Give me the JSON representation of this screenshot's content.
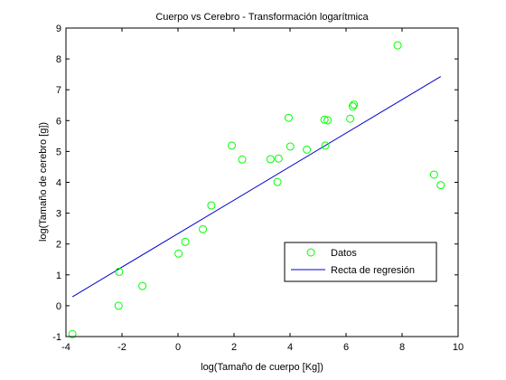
{
  "chart_data": {
    "type": "scatter",
    "title": "Cuerpo vs Cerebro - Transformación logarítmica",
    "xlabel": "log(Tamaño de cuerpo [Kg])",
    "ylabel": "log(Tamaño de cerebro [g])",
    "xlim": [
      -4,
      10
    ],
    "ylim": [
      -1,
      9
    ],
    "xticks": [
      -4,
      -2,
      0,
      2,
      4,
      6,
      8,
      10
    ],
    "xtick_labels": [
      "-4",
      "-2",
      "0",
      "2",
      "4",
      "6",
      "8",
      "10"
    ],
    "yticks": [
      -1,
      0,
      1,
      2,
      3,
      4,
      5,
      6,
      7,
      8,
      9
    ],
    "ytick_labels": [
      "-1",
      "0",
      "1",
      "2",
      "3",
      "4",
      "5",
      "6",
      "7",
      "8",
      "9"
    ],
    "grid": false,
    "legend_position": "bottom-right",
    "series": [
      {
        "name": "Datos",
        "kind": "scatter",
        "marker": "open-circle",
        "color": "#00ff00",
        "points": [
          [
            -3.77,
            -0.92
          ],
          [
            -2.12,
            0.0
          ],
          [
            -2.1,
            1.1
          ],
          [
            -1.27,
            0.64
          ],
          [
            0.02,
            1.69
          ],
          [
            0.26,
            2.07
          ],
          [
            0.89,
            2.48
          ],
          [
            1.19,
            3.25
          ],
          [
            1.92,
            5.19
          ],
          [
            2.29,
            4.74
          ],
          [
            3.3,
            4.75
          ],
          [
            3.55,
            4.01
          ],
          [
            3.59,
            4.77
          ],
          [
            3.95,
            6.09
          ],
          [
            4.01,
            5.16
          ],
          [
            4.6,
            5.06
          ],
          [
            5.23,
            6.03
          ],
          [
            5.26,
            5.19
          ],
          [
            5.34,
            6.01
          ],
          [
            6.15,
            6.06
          ],
          [
            6.24,
            6.46
          ],
          [
            6.28,
            6.52
          ],
          [
            7.84,
            8.44
          ],
          [
            9.14,
            4.25
          ],
          [
            9.38,
            3.91
          ]
        ]
      },
      {
        "name": "Recta de regresión",
        "kind": "line",
        "color": "#0000cc",
        "points": [
          [
            -3.77,
            0.29
          ],
          [
            9.38,
            7.43
          ]
        ]
      }
    ]
  }
}
